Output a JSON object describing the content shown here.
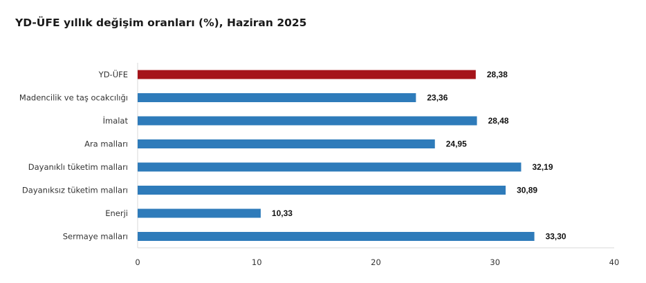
{
  "title": "YD-ÜFE yıllık değişim oranları (%), Haziran 2025",
  "chart_data": {
    "type": "bar",
    "orientation": "horizontal",
    "title": "YD-ÜFE yıllık değişim oranları (%), Haziran 2025",
    "categories": [
      "YD-ÜFE",
      "Madencilik ve taş ocakcılığı",
      "İmalat",
      "Ara malları",
      "Dayanıklı tüketim malları",
      "Dayanıksız tüketim malları",
      "Enerji",
      "Sermaye malları"
    ],
    "values": [
      28.38,
      23.36,
      28.48,
      24.95,
      32.19,
      30.89,
      10.33,
      33.3
    ],
    "value_labels": [
      "28,38",
      "23,36",
      "28,48",
      "24,95",
      "32,19",
      "30,89",
      "10,33",
      "33,30"
    ],
    "xlim": [
      0,
      40
    ],
    "xticks": [
      0,
      10,
      20,
      30,
      40
    ],
    "grid": false,
    "legend": "none",
    "colors": {
      "highlight": "#a5141a",
      "bar": "#2e7bba",
      "axis": "#d9d9d9"
    },
    "highlight_index": 0
  }
}
